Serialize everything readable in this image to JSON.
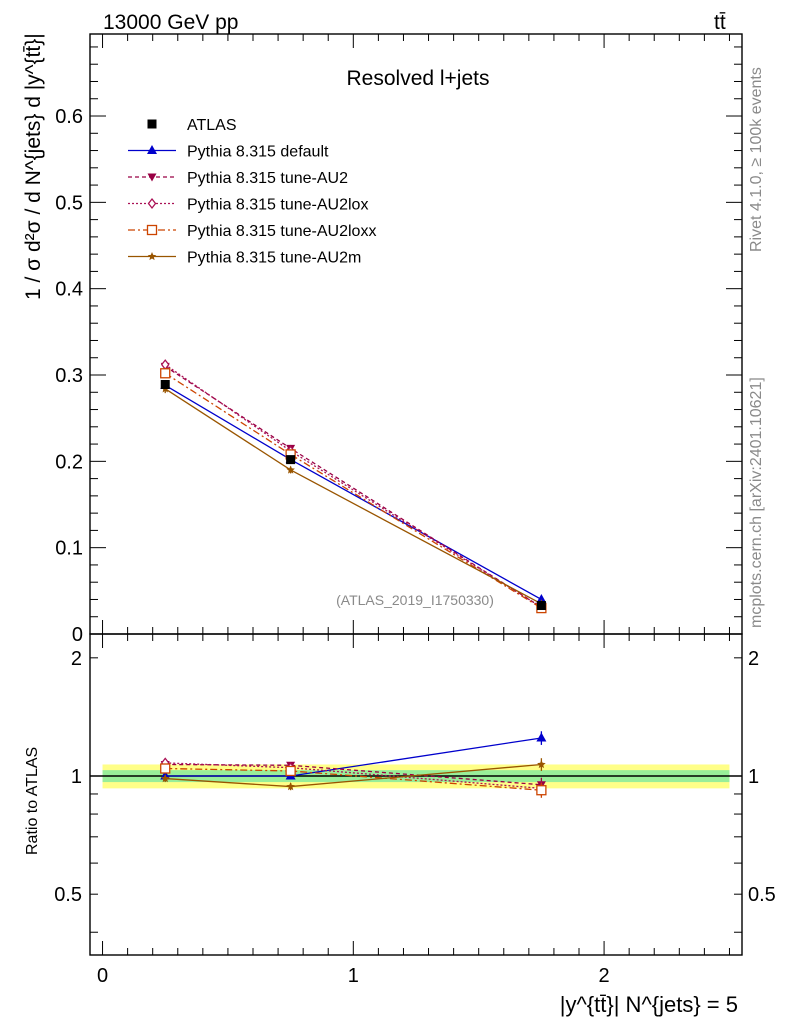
{
  "header": {
    "left": "13000 GeV pp",
    "right": "tt̄"
  },
  "side": {
    "rivet": "Rivet 4.1.0, ≥ 100k events",
    "mcplots": "mcplots.cern.ch [arXiv:2401.10621]"
  },
  "chart_data": {
    "type": "line",
    "title": "Resolved l+jets",
    "watermark": "(ATLAS_2019_I1750330)",
    "ylabel": "1 / σ d²σ / d N^{jets} d |y^{tt̄}|",
    "xlabel": "|y^{tt̄}| N^{jets} = 5",
    "ratio_ylabel": "Ratio to ATLAS",
    "xlim": [
      -0.05,
      2.55
    ],
    "ylim": [
      0,
      0.695
    ],
    "ratio_ylim": [
      0.35,
      2.3
    ],
    "x_ticks": [
      "0",
      "1",
      "2"
    ],
    "y_ticks": [
      "0",
      "0.1",
      "0.2",
      "0.3",
      "0.4",
      "0.5",
      "0.6"
    ],
    "ratio_ticks": [
      "0.5",
      "1",
      "2"
    ],
    "x": [
      0.25,
      0.75,
      1.75
    ],
    "reference": {
      "name": "ATLAS",
      "values": [
        0.289,
        0.202,
        0.033
      ],
      "errors": [
        0.005,
        0.004,
        0.002
      ]
    },
    "ratio_bands": {
      "inner": 0.035,
      "outer": 0.07
    },
    "series": [
      {
        "name": "Pythia 8.315 default",
        "color": "#0000cc",
        "marker": "triangle-up",
        "dash": "",
        "values": [
          0.288,
          0.202,
          0.04
        ],
        "errors": [
          0.004,
          0.003,
          0.002
        ],
        "ratio": [
          1.0,
          1.0,
          1.25
        ],
        "ratio_err": [
          0.02,
          0.02,
          0.05
        ]
      },
      {
        "name": "Pythia 8.315 tune-AU2",
        "color": "#990044",
        "marker": "triangle-down",
        "dash": "4,3",
        "values": [
          0.31,
          0.215,
          0.031
        ],
        "errors": [
          0.005,
          0.004,
          0.002
        ],
        "ratio": [
          1.07,
          1.065,
          0.95
        ],
        "ratio_err": [
          0.02,
          0.02,
          0.04
        ]
      },
      {
        "name": "Pythia 8.315 tune-AU2lox",
        "color": "#aa1155",
        "marker": "diamond-open",
        "dash": "2,2",
        "values": [
          0.312,
          0.212,
          0.031
        ],
        "errors": [
          0.005,
          0.004,
          0.002
        ],
        "ratio": [
          1.08,
          1.05,
          0.93
        ],
        "ratio_err": [
          0.02,
          0.02,
          0.04
        ]
      },
      {
        "name": "Pythia 8.315 tune-AU2loxx",
        "color": "#cc4400",
        "marker": "square-open",
        "dash": "7,3,2,3",
        "values": [
          0.302,
          0.208,
          0.03
        ],
        "errors": [
          0.005,
          0.004,
          0.002
        ],
        "ratio": [
          1.045,
          1.03,
          0.92
        ],
        "ratio_err": [
          0.02,
          0.02,
          0.04
        ]
      },
      {
        "name": "Pythia 8.315 tune-AU2m",
        "color": "#995500",
        "marker": "star",
        "dash": "",
        "values": [
          0.284,
          0.19,
          0.035
        ],
        "errors": [
          0.005,
          0.004,
          0.002
        ],
        "ratio": [
          0.985,
          0.94,
          1.07
        ],
        "ratio_err": [
          0.02,
          0.02,
          0.04
        ]
      }
    ]
  }
}
